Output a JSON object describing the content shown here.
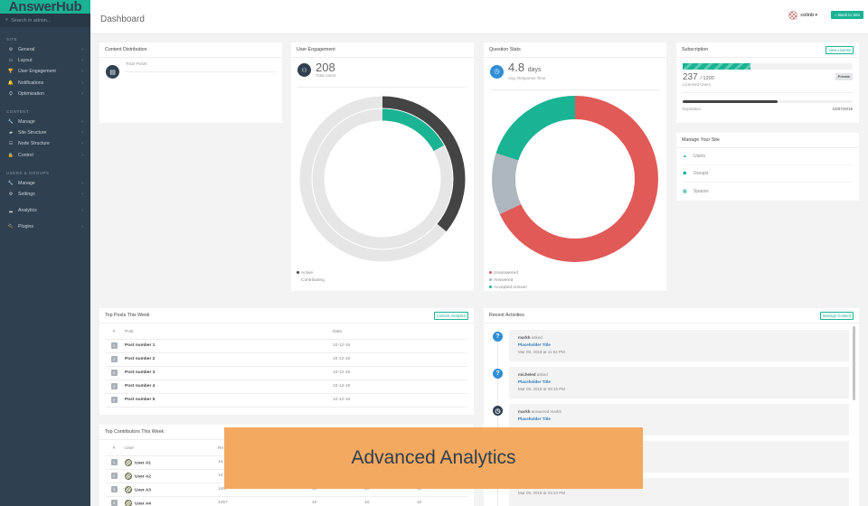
{
  "sidebar": {
    "logo": "AnswerHub",
    "search_placeholder": "Search in admin...",
    "sections": [
      {
        "title": "SITE",
        "items": [
          {
            "label": "General",
            "icon": "⚙"
          },
          {
            "label": "Layout",
            "icon": "▭"
          },
          {
            "label": "User Engagement",
            "icon": "🏆"
          },
          {
            "label": "Notifications",
            "icon": "🔔"
          },
          {
            "label": "Optimization",
            "icon": "⛭"
          }
        ]
      },
      {
        "title": "CONTENT",
        "items": [
          {
            "label": "Manage",
            "icon": "🔧"
          },
          {
            "label": "Site Structure",
            "icon": "▰"
          },
          {
            "label": "Node Structure",
            "icon": "☷"
          },
          {
            "label": "Control",
            "icon": "🔒"
          }
        ]
      },
      {
        "title": "USERS & GROUPS",
        "items": [
          {
            "label": "Manage",
            "icon": "🔧"
          },
          {
            "label": "Settings",
            "icon": "⚙"
          }
        ]
      },
      {
        "title": "",
        "items": [
          {
            "label": "Analytics",
            "icon": "▂"
          }
        ]
      },
      {
        "title": "",
        "items": [
          {
            "label": "Plugins",
            "icon": "🔌"
          }
        ]
      }
    ],
    "chevron": "‹"
  },
  "header": {
    "title": "Dashboard",
    "user": "colinb ▾",
    "back_button": "⌂ Back to Site"
  },
  "content_distribution": {
    "title": "Content Distribution",
    "stat_label": "Total Posts"
  },
  "user_engagement": {
    "title": "User Engagement",
    "value": "208",
    "label": "Total Users",
    "legend": [
      {
        "label": "Active",
        "color": "#444444"
      },
      {
        "label": "Contributing",
        "color": "#1ab394"
      }
    ]
  },
  "question_stats": {
    "title": "Question Stats",
    "value": "4.8",
    "unit": "days",
    "label": "Avg. Response Time",
    "legend": [
      {
        "label": "Unanswered",
        "color": "#e05a57"
      },
      {
        "label": "Answered",
        "color": "#aeb6bf"
      },
      {
        "label": "Accepted Answer",
        "color": "#1ab394"
      }
    ]
  },
  "chart_data": [
    {
      "type": "pie",
      "title": "User Engagement",
      "subtype": "concentric-donut",
      "series": [
        {
          "name": "Active",
          "values": [
            36,
            64
          ],
          "color": "#444444"
        },
        {
          "name": "Contributing",
          "values": [
            17,
            83
          ],
          "color": "#1ab394"
        }
      ],
      "categories": [
        "Share",
        "Remainder"
      ]
    },
    {
      "type": "pie",
      "title": "Question Stats",
      "subtype": "donut",
      "categories": [
        "Unanswered",
        "Answered",
        "Accepted Answer"
      ],
      "values": [
        68,
        12,
        20
      ],
      "colors": [
        "#e05a57",
        "#aeb6bf",
        "#1ab394"
      ]
    }
  ],
  "subscription": {
    "title": "Subscription",
    "view_license": "View License",
    "licensed": "237",
    "licensed_total": "/ 1200",
    "licensed_label": "Licensed Users",
    "badge": "Private",
    "expiration_label": "Expiration",
    "expiration_date": "10/07/2019"
  },
  "manage_site": {
    "title": "Manage Your Site",
    "items": [
      {
        "label": "Users",
        "icon": "👤"
      },
      {
        "label": "Groups",
        "icon": "👥"
      },
      {
        "label": "Spaces",
        "icon": "▦"
      }
    ]
  },
  "top_posts": {
    "title": "Top Posts This Week",
    "button": "Content Analytics",
    "columns": [
      "#",
      "Post",
      "Date"
    ],
    "rows": [
      {
        "rank": "1",
        "post": "Post number 1",
        "date": "10-12-16"
      },
      {
        "rank": "2",
        "post": "Post number 2",
        "date": "10-12-16"
      },
      {
        "rank": "3",
        "post": "Post number 3",
        "date": "10-12-16"
      },
      {
        "rank": "4",
        "post": "Post number 4",
        "date": "10-12-16"
      },
      {
        "rank": "5",
        "post": "Post number 5",
        "date": "10-12-16"
      }
    ]
  },
  "top_contributors": {
    "title": "Top Contributors This Week",
    "columns": [
      "#",
      "User",
      "Re"
    ],
    "rows": [
      {
        "rank": "1",
        "user": "User A1",
        "rep": "14",
        "c1": "",
        "c2": "",
        "c3": ""
      },
      {
        "rank": "2",
        "user": "User A2",
        "rep": "14",
        "c1": "",
        "c2": "",
        "c3": ""
      },
      {
        "rank": "3",
        "user": "User A3",
        "rep": "1457",
        "c1": "10",
        "c2": "10",
        "c3": "10"
      },
      {
        "rank": "4",
        "user": "User A4",
        "rep": "1457",
        "c1": "10",
        "c2": "10",
        "c3": "10"
      }
    ]
  },
  "recent_activities": {
    "title": "Recent Activities",
    "button": "Manage Content",
    "items": [
      {
        "user": "markh",
        "action": "asked",
        "title": "Placeholder Title",
        "time": "Mar 08, 2018 at 11:54 PM",
        "icon": "?"
      },
      {
        "user": "micheled",
        "action": "asked",
        "title": "Placeholder Title",
        "time": "Mar 08, 2018 at 08:15 PM",
        "icon": "?"
      },
      {
        "user": "markh",
        "action": "answered markh",
        "title": "Placeholder Title",
        "time": "",
        "icon": "◷"
      },
      {
        "user": "",
        "action": "",
        "title": "",
        "time": "",
        "icon": ""
      },
      {
        "user": "",
        "action": "",
        "title": "Placeholder Title",
        "time": "Mar 05, 2018 at 03:34 PM",
        "icon": ""
      }
    ]
  },
  "overlay": {
    "text": "Advanced Analytics"
  }
}
